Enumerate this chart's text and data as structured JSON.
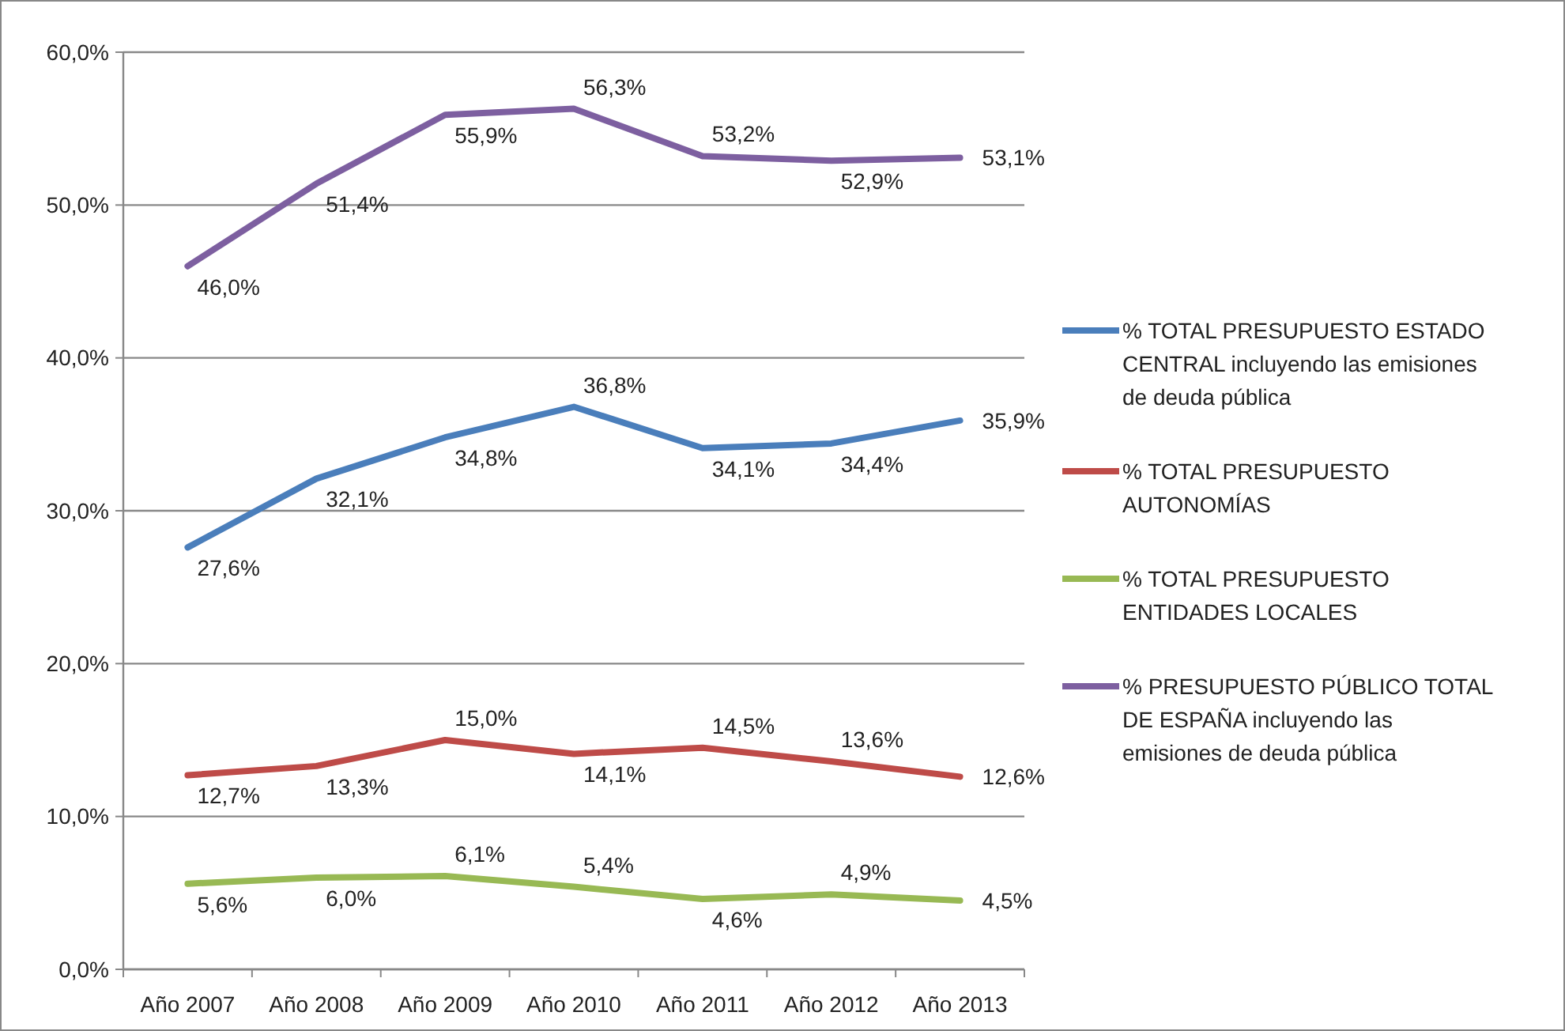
{
  "chart_data": {
    "type": "line",
    "categories": [
      "Año 2007",
      "Año 2008",
      "Año 2009",
      "Año 2010",
      "Año 2011",
      "Año 2012",
      "Año 2013"
    ],
    "series": [
      {
        "name": "% TOTAL PRESUPUESTO ESTADO CENTRAL incluyendo las emisiones de deuda pública",
        "color": "#4a7ebb",
        "values": [
          27.6,
          32.1,
          34.8,
          36.8,
          34.1,
          34.4,
          35.9
        ],
        "value_labels": [
          "27,6%",
          "32,1%",
          "34,8%",
          "36,8%",
          "34,1%",
          "34,4%",
          "35,9%"
        ]
      },
      {
        "name": "% TOTAL PRESUPUESTO AUTONOMÍAS",
        "color": "#be4b48",
        "values": [
          12.7,
          13.3,
          15.0,
          14.1,
          14.5,
          13.6,
          12.6
        ],
        "value_labels": [
          "12,7%",
          "13,3%",
          "15,0%",
          "14,1%",
          "14,5%",
          "13,6%",
          "12,6%"
        ]
      },
      {
        "name": "% TOTAL PRESUPUESTO ENTIDADES LOCALES",
        "color": "#98b954",
        "values": [
          5.6,
          6.0,
          6.1,
          5.4,
          4.6,
          4.9,
          4.5
        ],
        "value_labels": [
          "5,6%",
          "6,0%",
          "6,1%",
          "5,4%",
          "4,6%",
          "4,9%",
          "4,5%"
        ]
      },
      {
        "name": "% PRESUPUESTO PÚBLICO TOTAL DE ESPAÑA incluyendo las emisiones de deuda pública",
        "color": "#7d5fa0",
        "values": [
          46.0,
          51.4,
          55.9,
          56.3,
          53.2,
          52.9,
          53.1
        ],
        "value_labels": [
          "46,0%",
          "51,4%",
          "55,9%",
          "56,3%",
          "53,2%",
          "52,9%",
          "53,1%"
        ]
      }
    ],
    "ylim": [
      0,
      60
    ],
    "yticks": [
      {
        "value": 0,
        "label": "0,0%"
      },
      {
        "value": 10,
        "label": "10,0%"
      },
      {
        "value": 20,
        "label": "20,0%"
      },
      {
        "value": 30,
        "label": "30,0%"
      },
      {
        "value": 40,
        "label": "40,0%"
      },
      {
        "value": 50,
        "label": "50,0%"
      },
      {
        "value": 60,
        "label": "60,0%"
      }
    ],
    "grid": "y",
    "legend": "right",
    "marker": "none",
    "line_style": "solid"
  }
}
